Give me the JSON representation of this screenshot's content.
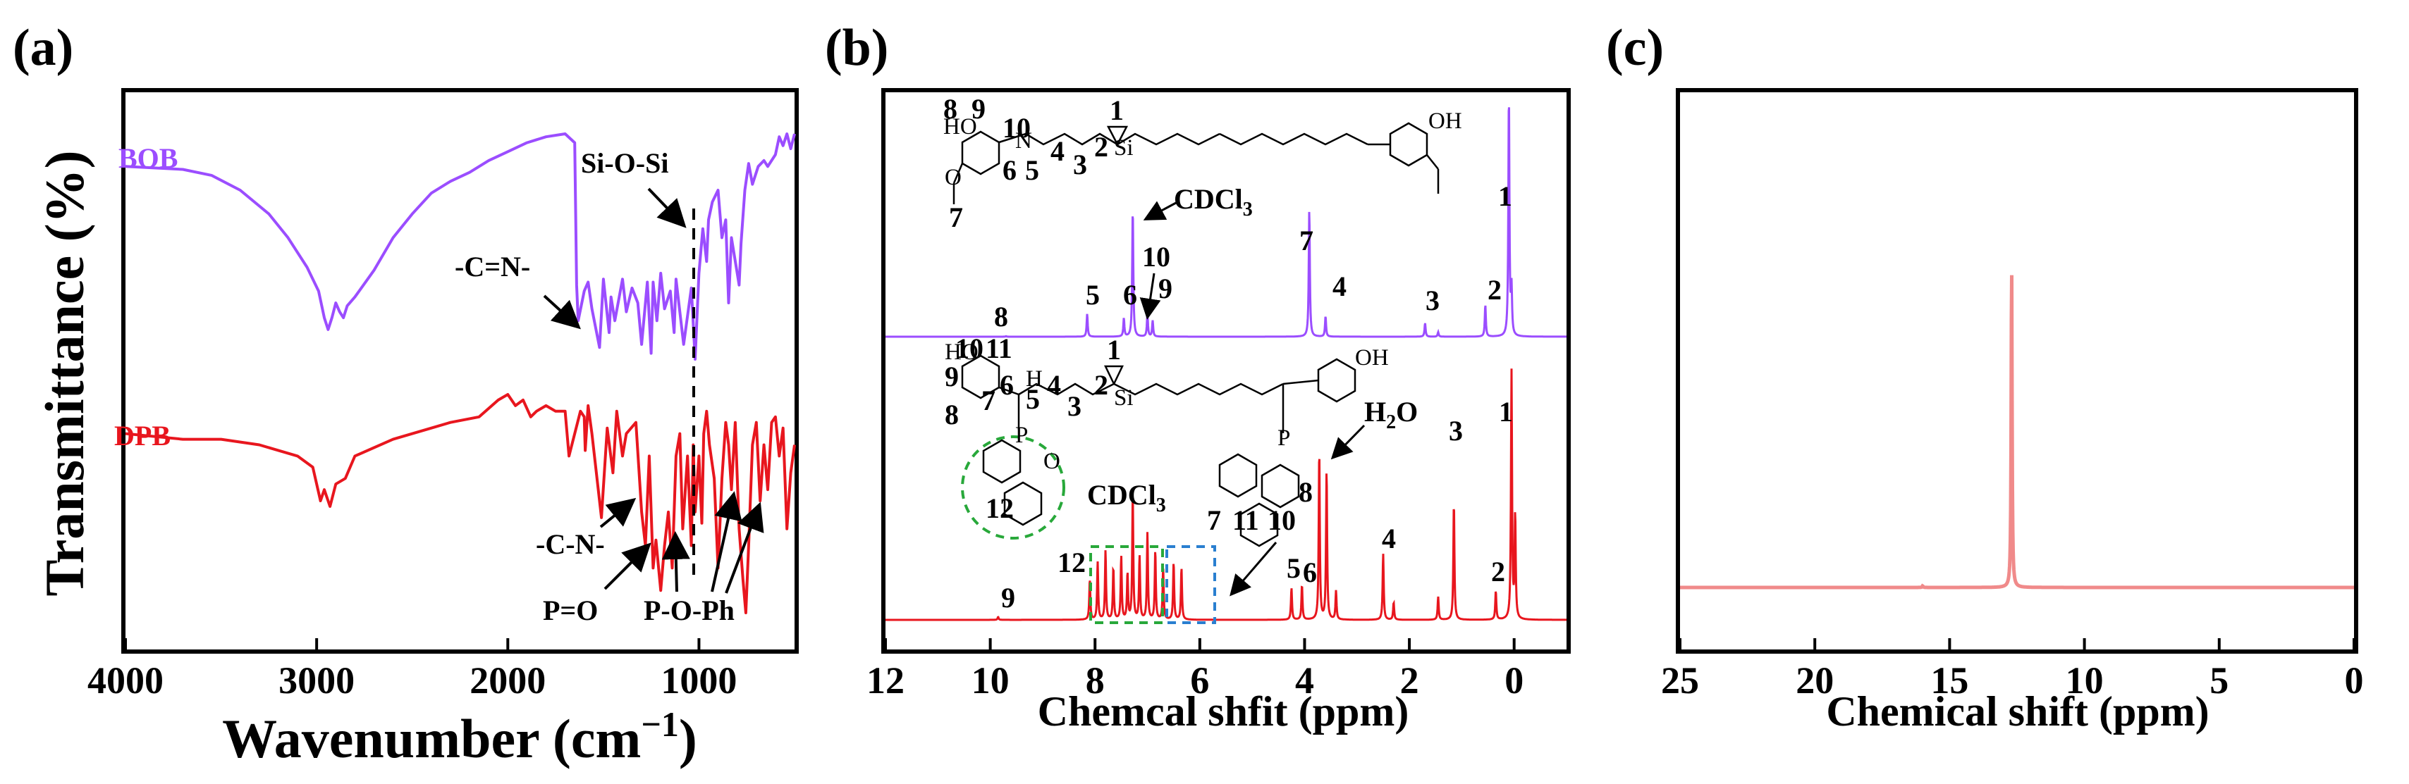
{
  "panels": {
    "a": {
      "letter": "(a)",
      "xlabel_main": "Wavenumber (cm",
      "xlabel_sup": "−1",
      "xlabel_end": ")",
      "ylabel": "Transmittance (%)",
      "xticks": [
        "4000",
        "3000",
        "2000",
        "1000"
      ],
      "annotations": {
        "si_o_si": "Si-O-Si",
        "c_eq_n": "-C=N-",
        "c_n": "-C-N-",
        "p_eq_o": "P=O",
        "p_o_ph": "P-O-Ph"
      }
    },
    "b": {
      "letter": "(b)",
      "xlabel": "Chemcal shfit (ppm)",
      "xticks": [
        "12",
        "10",
        "8",
        "6",
        "4",
        "2",
        "0"
      ],
      "annotations": {
        "cdcl3_top": "CDCl",
        "cdcl3_bottom": "CDCl",
        "sub3": "3",
        "h2o": "H",
        "h2o_sub": "2",
        "h2o_end": "O",
        "top_labels": [
          "1",
          "2",
          "3",
          "4",
          "5",
          "6",
          "7",
          "8",
          "10",
          "9"
        ],
        "bottom_labels": [
          "1",
          "2",
          "3",
          "4",
          "5",
          "6",
          "8",
          "9",
          "12",
          "7",
          "11",
          "10"
        ],
        "struct_top_labels": [
          "8",
          "9",
          "10",
          "6",
          "7",
          "5",
          "4",
          "3",
          "2",
          "1"
        ],
        "struct_bottom_labels": [
          "10",
          "11",
          "9",
          "6",
          "5",
          "4",
          "3",
          "2",
          "1",
          "8",
          "7",
          "12"
        ],
        "struct_ho": "HO",
        "struct_oh": "OH",
        "struct_h": "H",
        "struct_n": "N",
        "struct_si": "Si",
        "struct_o": "O",
        "struct_p": "P"
      }
    },
    "c": {
      "letter": "(c)",
      "xlabel": "Chemical shift (ppm)",
      "xticks": [
        "25",
        "20",
        "15",
        "10",
        "5",
        "0"
      ]
    }
  },
  "chart_data": [
    {
      "type": "line",
      "panel": "a",
      "xlabel": "Wavenumber (cm−1)",
      "ylabel": "Transmittance (%)",
      "xlim": [
        4000,
        500
      ],
      "x_reversed": true,
      "series": [
        {
          "name": "BOB",
          "color": "#9b4dff",
          "points": [
            [
              4000,
              96
            ],
            [
              3700,
              95
            ],
            [
              3550,
              93
            ],
            [
              3400,
              88
            ],
            [
              3250,
              80
            ],
            [
              3150,
              72
            ],
            [
              3050,
              62
            ],
            [
              2990,
              54
            ],
            [
              2960,
              45
            ],
            [
              2940,
              41
            ],
            [
              2920,
              45
            ],
            [
              2900,
              50
            ],
            [
              2880,
              47
            ],
            [
              2860,
              45
            ],
            [
              2840,
              49
            ],
            [
              2800,
              52
            ],
            [
              2700,
              61
            ],
            [
              2600,
              72
            ],
            [
              2500,
              80
            ],
            [
              2400,
              87
            ],
            [
              2300,
              91
            ],
            [
              2200,
              94
            ],
            [
              2100,
              98
            ],
            [
              2000,
              101
            ],
            [
              1900,
              104
            ],
            [
              1800,
              106
            ],
            [
              1700,
              107
            ],
            [
              1650,
              104
            ],
            [
              1640,
              56
            ],
            [
              1632,
              44
            ],
            [
              1600,
              54
            ],
            [
              1580,
              57
            ],
            [
              1560,
              48
            ],
            [
              1520,
              35
            ],
            [
              1500,
              58
            ],
            [
              1470,
              40
            ],
            [
              1460,
              52
            ],
            [
              1440,
              44
            ],
            [
              1400,
              58
            ],
            [
              1380,
              47
            ],
            [
              1350,
              55
            ],
            [
              1320,
              50
            ],
            [
              1300,
              36
            ],
            [
              1270,
              57
            ],
            [
              1250,
              33
            ],
            [
              1240,
              57
            ],
            [
              1220,
              44
            ],
            [
              1200,
              60
            ],
            [
              1180,
              48
            ],
            [
              1150,
              54
            ],
            [
              1130,
              40
            ],
            [
              1120,
              58
            ],
            [
              1080,
              36
            ],
            [
              1040,
              55
            ],
            [
              1020,
              31
            ],
            [
              1000,
              60
            ],
            [
              980,
              75
            ],
            [
              960,
              64
            ],
            [
              950,
              78
            ],
            [
              930,
              84
            ],
            [
              900,
              88
            ],
            [
              880,
              72
            ],
            [
              860,
              78
            ],
            [
              845,
              50
            ],
            [
              830,
              72
            ],
            [
              800,
              60
            ],
            [
              790,
              56
            ],
            [
              780,
              70
            ],
            [
              760,
              88
            ],
            [
              740,
              97
            ],
            [
              720,
              90
            ],
            [
              690,
              96
            ],
            [
              660,
              98
            ],
            [
              640,
              96
            ],
            [
              600,
              100
            ],
            [
              580,
              106
            ],
            [
              560,
              103
            ],
            [
              540,
              107
            ],
            [
              520,
              102
            ],
            [
              500,
              107
            ]
          ]
        },
        {
          "name": "DPB",
          "color": "#e8161e",
          "points": [
            [
              4000,
              32
            ],
            [
              3700,
              31
            ],
            [
              3500,
              31
            ],
            [
              3300,
              30
            ],
            [
              3100,
              28
            ],
            [
              3020,
              26
            ],
            [
              2980,
              20
            ],
            [
              2960,
              22
            ],
            [
              2930,
              19
            ],
            [
              2900,
              23
            ],
            [
              2850,
              24
            ],
            [
              2800,
              28
            ],
            [
              2600,
              31
            ],
            [
              2400,
              33
            ],
            [
              2300,
              34
            ],
            [
              2150,
              35
            ],
            [
              2050,
              38
            ],
            [
              2000,
              39
            ],
            [
              1960,
              37
            ],
            [
              1920,
              38
            ],
            [
              1880,
              35
            ],
            [
              1850,
              36
            ],
            [
              1800,
              37
            ],
            [
              1750,
              36
            ],
            [
              1700,
              36
            ],
            [
              1680,
              28
            ],
            [
              1620,
              36
            ],
            [
              1600,
              35
            ],
            [
              1595,
              29
            ],
            [
              1580,
              37
            ],
            [
              1560,
              32
            ],
            [
              1510,
              17
            ],
            [
              1480,
              33
            ],
            [
              1450,
              25
            ],
            [
              1430,
              36
            ],
            [
              1400,
              28
            ],
            [
              1380,
              32
            ],
            [
              1330,
              34
            ],
            [
              1300,
              18
            ],
            [
              1280,
              12
            ],
            [
              1260,
              28
            ],
            [
              1240,
              8
            ],
            [
              1225,
              13
            ],
            [
              1200,
              4
            ],
            [
              1180,
              12
            ],
            [
              1160,
              18
            ],
            [
              1140,
              8
            ],
            [
              1120,
              28
            ],
            [
              1100,
              32
            ],
            [
              1085,
              15
            ],
            [
              1060,
              28
            ],
            [
              1040,
              12
            ],
            [
              1030,
              30
            ],
            [
              1020,
              18
            ],
            [
              1000,
              28
            ],
            [
              985,
              16
            ],
            [
              975,
              32
            ],
            [
              960,
              36
            ],
            [
              945,
              30
            ],
            [
              920,
              24
            ],
            [
              900,
              8
            ],
            [
              880,
              24
            ],
            [
              860,
              34
            ],
            [
              845,
              30
            ],
            [
              830,
              22
            ],
            [
              810,
              34
            ],
            [
              790,
              15
            ],
            [
              770,
              6
            ],
            [
              755,
              0
            ],
            [
              740,
              12
            ],
            [
              720,
              30
            ],
            [
              700,
              34
            ],
            [
              680,
              20
            ],
            [
              660,
              30
            ],
            [
              640,
              22
            ],
            [
              620,
              34
            ],
            [
              600,
              35
            ],
            [
              580,
              28
            ],
            [
              560,
              33
            ],
            [
              540,
              15
            ],
            [
              520,
              25
            ],
            [
              500,
              30
            ]
          ]
        }
      ]
    },
    {
      "type": "line",
      "panel": "b",
      "xlabel": "Chemcal shfit (ppm)",
      "xlim": [
        12,
        -1
      ],
      "x_reversed": true,
      "series": [
        {
          "name": "BOB",
          "color": "#9b4dff",
          "peaks": [
            [
              9.7,
              0.2
            ],
            [
              8.15,
              10
            ],
            [
              7.45,
              8
            ],
            [
              7.28,
              56
            ],
            [
              7.0,
              10
            ],
            [
              6.9,
              7
            ],
            [
              3.91,
              56
            ],
            [
              3.6,
              9
            ],
            [
              1.7,
              6
            ],
            [
              1.45,
              2
            ],
            [
              0.55,
              14
            ],
            [
              0.1,
              106
            ],
            [
              0.05,
              20
            ]
          ]
        },
        {
          "name": "DPB",
          "color": "#e8161e",
          "peaks": [
            [
              9.85,
              1
            ],
            [
              8.1,
              14
            ],
            [
              7.95,
              20
            ],
            [
              7.8,
              24
            ],
            [
              7.65,
              18
            ],
            [
              7.5,
              22
            ],
            [
              7.38,
              16
            ],
            [
              7.28,
              43
            ],
            [
              7.15,
              22
            ],
            [
              7.0,
              30
            ],
            [
              6.85,
              24
            ],
            [
              6.7,
              18
            ],
            [
              6.5,
              20
            ],
            [
              6.35,
              18
            ],
            [
              4.25,
              11
            ],
            [
              4.05,
              12
            ],
            [
              3.72,
              59
            ],
            [
              3.58,
              52
            ],
            [
              3.4,
              10
            ],
            [
              2.5,
              23
            ],
            [
              2.3,
              6
            ],
            [
              1.45,
              8
            ],
            [
              1.15,
              41
            ],
            [
              0.35,
              10
            ],
            [
              0.05,
              86
            ],
            [
              -0.02,
              36
            ]
          ]
        }
      ]
    },
    {
      "type": "line",
      "panel": "c",
      "xlabel": "Chemical shift (ppm)",
      "xlim": [
        25,
        0
      ],
      "x_reversed": true,
      "series": [
        {
          "name": "",
          "color": "#f08a8a",
          "peaks": [
            [
              16.0,
              0.5
            ],
            [
              12.7,
              100
            ]
          ]
        }
      ]
    }
  ],
  "colors": {
    "bob": "#9b4dff",
    "dpb": "#e8161e",
    "p31": "#f08a8a",
    "box_green": "#28a83a",
    "box_blue": "#2a7fd0"
  }
}
